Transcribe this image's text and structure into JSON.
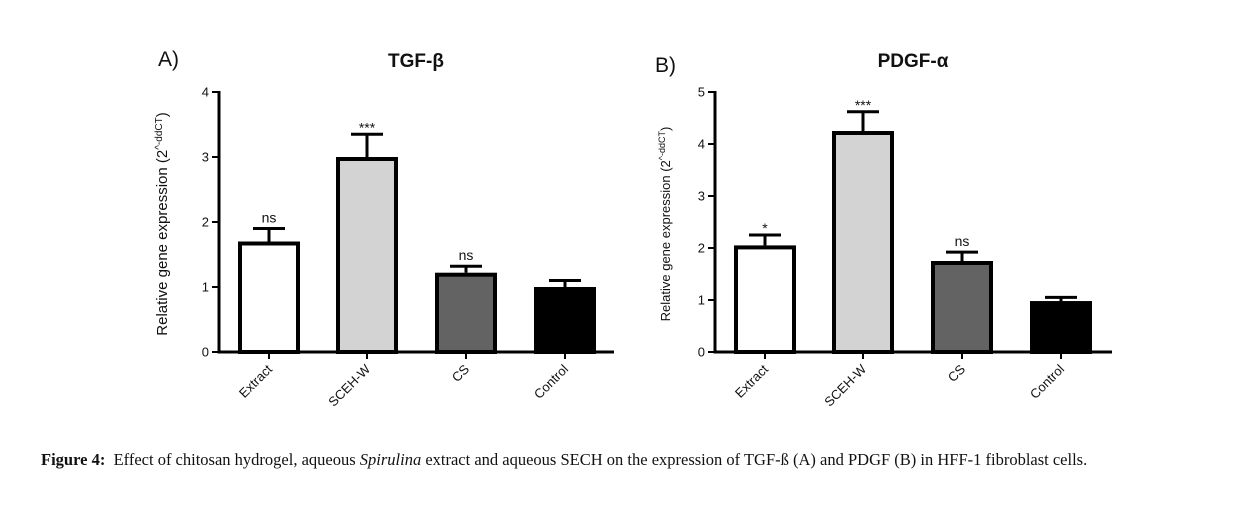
{
  "chart_data": [
    {
      "type": "bar",
      "panel_label": "A)",
      "title": "TGF-β",
      "xlabel": "",
      "ylabel": "Relative gene expression (2^-ddCT)",
      "ylabel_base": "Relative gene expression (2",
      "ylabel_sup": "^-ddCT",
      "ylabel_close": ")",
      "ylim": [
        0,
        4
      ],
      "yticks": [
        0,
        1,
        2,
        3,
        4
      ],
      "categories": [
        "Extract",
        "SCEH-W",
        "CS",
        "Control"
      ],
      "values": [
        1.7,
        3.0,
        1.22,
        1.0
      ],
      "error_upper": [
        0.2,
        0.35,
        0.1,
        0.1
      ],
      "significance": [
        "ns",
        "***",
        "ns",
        ""
      ],
      "colors": [
        "#ffffff",
        "#d3d3d3",
        "#636363",
        "#000000"
      ],
      "grid": false,
      "legend": "none"
    },
    {
      "type": "bar",
      "panel_label": "B)",
      "title": "PDGF-α",
      "xlabel": "",
      "ylabel": "Relative gene expression (2^-ddCT)",
      "ylabel_base": "Relative gene expression (2",
      "ylabel_sup": "^-ddCT",
      "ylabel_close": ")",
      "ylim": [
        0,
        5
      ],
      "yticks": [
        0,
        1,
        2,
        3,
        4,
        5
      ],
      "categories": [
        "Extract",
        "SCEH-W",
        "CS",
        "Control"
      ],
      "values": [
        2.05,
        4.25,
        1.75,
        0.98
      ],
      "error_upper": [
        0.2,
        0.37,
        0.17,
        0.07
      ],
      "significance": [
        "*",
        "***",
        "ns",
        ""
      ],
      "colors": [
        "#ffffff",
        "#d3d3d3",
        "#636363",
        "#000000"
      ],
      "grid": false,
      "legend": "none"
    }
  ],
  "caption": {
    "label": "Figure 4:",
    "text_before": "Effect of chitosan hydrogel, aqueous ",
    "italic": "Spirulina",
    "text_after": " extract and aqueous SECH on the expression of TGF-ß (A) and PDGF (B) in HFF-1 fibroblast cells."
  }
}
